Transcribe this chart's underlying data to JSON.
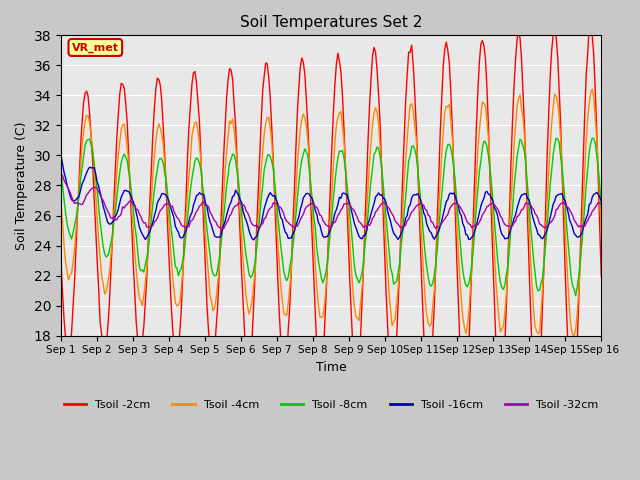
{
  "title": "Soil Temperatures Set 2",
  "xlabel": "Time",
  "ylabel": "Soil Temperature (C)",
  "ylim": [
    18,
    38
  ],
  "yticks": [
    18,
    20,
    22,
    24,
    26,
    28,
    30,
    32,
    34,
    36,
    38
  ],
  "xtick_positions": [
    0,
    1,
    2,
    3,
    4,
    5,
    6,
    7,
    8,
    9,
    10,
    11,
    12,
    13,
    14,
    15
  ],
  "xtick_labels": [
    "Sep 1",
    "Sep 2",
    "Sep 3",
    "Sep 4",
    "Sep 5",
    "Sep 6",
    "Sep 7",
    "Sep 8",
    "Sep 9",
    "Sep 10",
    "Sep 11",
    "Sep 12",
    "Sep 13",
    "Sep 14",
    "Sep 15",
    "Sep 16"
  ],
  "n_days": 15,
  "annotation_text": "VR_met",
  "annotation_bg": "#ffff99",
  "annotation_border": "#cc0000",
  "colors": {
    "Tsoil -2cm": "#ff0000",
    "Tsoil -4cm": "#ff8800",
    "Tsoil -8cm": "#00cc00",
    "Tsoil -16cm": "#0000cc",
    "Tsoil -32cm": "#aa00aa"
  },
  "legend_labels": [
    "Tsoil -2cm",
    "Tsoil -4cm",
    "Tsoil -8cm",
    "Tsoil -16cm",
    "Tsoil -32cm"
  ],
  "bg_color": "#e8e8e8",
  "grid_color": "#ffffff",
  "fig_bg": "#c8c8c8"
}
